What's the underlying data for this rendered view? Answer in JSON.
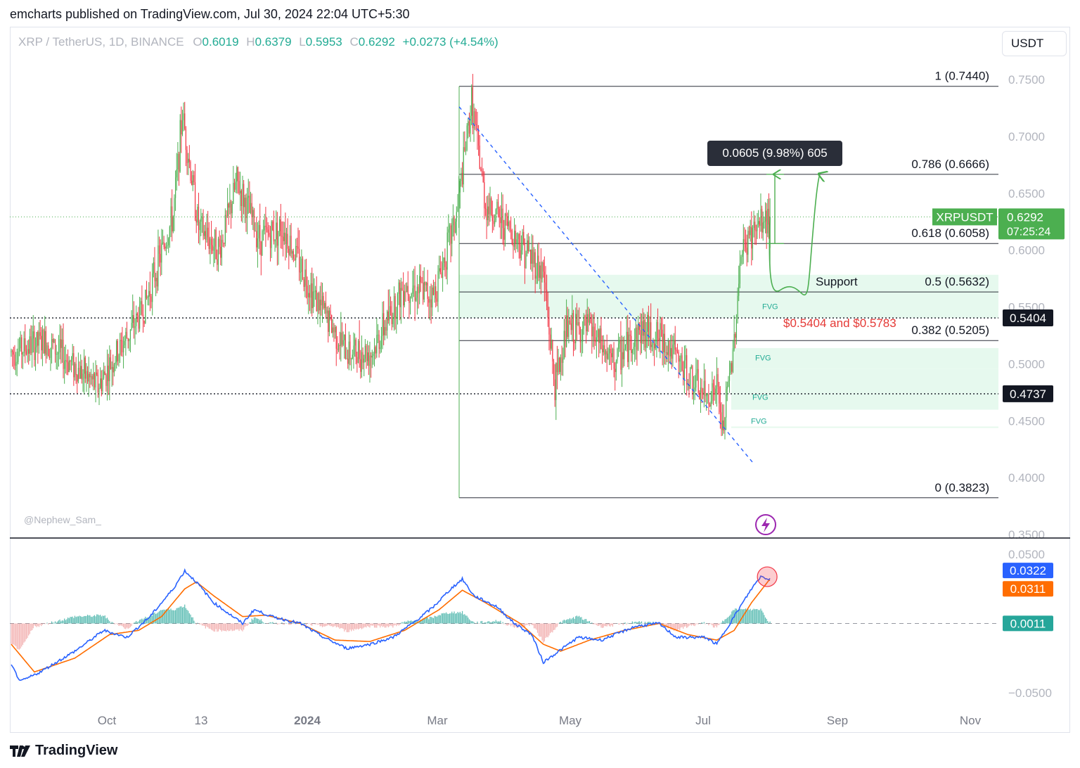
{
  "header": {
    "published": "emcharts published on TradingView.com, Jul 30, 2024 22:04 UTC+5:30"
  },
  "currency_button": "USDT",
  "ohlc": {
    "symbol": "XRP / TetherUS, 1D, BINANCE",
    "o_label": "O",
    "o": "0.6019",
    "h_label": "H",
    "h": "0.6379",
    "l_label": "L",
    "l": "0.5953",
    "c_label": "C",
    "c": "0.6292",
    "change": "+0.0273 (+4.54%)"
  },
  "watermark": "@Nephew_Sam_",
  "ruler_tooltip": "0.0605 (9.98%) 605",
  "support_label": "Support",
  "support_range": "$0.5404 and $0.5783",
  "fvg_label": "FVG",
  "footer": {
    "brand": "TradingView"
  },
  "colors": {
    "up": "#4caf50",
    "down": "#f23645",
    "macd": "#2962ff",
    "signal": "#ff6d00",
    "hist": "#26a69a",
    "fvg": "#e6f9ee",
    "label_red": "#e53935"
  },
  "chart_data": [
    {
      "type": "candlestick",
      "title": "XRP / TetherUS, 1D, BINANCE",
      "ylim": [
        0.34,
        0.76
      ],
      "y_ticks": [
        0.75,
        0.7,
        0.65,
        0.6,
        0.55,
        0.5,
        0.45,
        0.4,
        0.35
      ],
      "y_tick_labels": [
        "0.7500",
        "0.7000",
        "0.6500",
        "0.6000",
        "0.5500",
        "0.5000",
        "0.4500",
        "0.4000",
        "0.3500"
      ],
      "x_ticks": [
        "Oct",
        "13",
        "2024",
        "Mar",
        "May",
        "Jul",
        "Sep",
        "Nov"
      ],
      "last_price": {
        "symbol": "XRPUSDT",
        "value": "0.6292",
        "countdown": "07:25:24"
      },
      "price_tags": [
        {
          "value": 0.5404,
          "label": "0.5404"
        },
        {
          "value": 0.4737,
          "label": "0.4737"
        }
      ],
      "fib_levels": [
        {
          "level": "1",
          "price": 0.744,
          "label": "1 (0.7440)"
        },
        {
          "level": "0.786",
          "price": 0.6666,
          "label": "0.786 (0.6666)"
        },
        {
          "level": "0.618",
          "price": 0.6058,
          "label": "0.618 (0.6058)"
        },
        {
          "level": "0.5",
          "price": 0.5632,
          "label": "0.5 (0.5632)"
        },
        {
          "level": "0.382",
          "price": 0.5205,
          "label": "0.382 (0.5205)"
        },
        {
          "level": "0",
          "price": 0.3823,
          "label": "0 (0.3823)"
        }
      ],
      "fvg_zones": [
        [
          0.5404,
          0.5783
        ],
        [
          0.4957,
          0.5139
        ],
        [
          0.4597,
          0.4957
        ],
        [
          0.4437,
          0.4449
        ]
      ],
      "anchors": [
        {
          "x": 0,
          "y": 0.51
        },
        {
          "x": 30,
          "y": 0.52
        },
        {
          "x": 75,
          "y": 0.48
        },
        {
          "x": 115,
          "y": 0.55
        },
        {
          "x": 140,
          "y": 0.63
        },
        {
          "x": 148,
          "y": 0.72
        },
        {
          "x": 162,
          "y": 0.62
        },
        {
          "x": 180,
          "y": 0.6
        },
        {
          "x": 195,
          "y": 0.66
        },
        {
          "x": 215,
          "y": 0.61
        },
        {
          "x": 235,
          "y": 0.62
        },
        {
          "x": 262,
          "y": 0.56
        },
        {
          "x": 290,
          "y": 0.51
        },
        {
          "x": 312,
          "y": 0.51
        },
        {
          "x": 340,
          "y": 0.57
        },
        {
          "x": 365,
          "y": 0.56
        },
        {
          "x": 385,
          "y": 0.63
        },
        {
          "x": 398,
          "y": 0.73
        },
        {
          "x": 410,
          "y": 0.64
        },
        {
          "x": 430,
          "y": 0.62
        },
        {
          "x": 460,
          "y": 0.58
        },
        {
          "x": 470,
          "y": 0.48
        },
        {
          "x": 480,
          "y": 0.53
        },
        {
          "x": 500,
          "y": 0.53
        },
        {
          "x": 520,
          "y": 0.5
        },
        {
          "x": 545,
          "y": 0.53
        },
        {
          "x": 565,
          "y": 0.52
        },
        {
          "x": 585,
          "y": 0.49
        },
        {
          "x": 600,
          "y": 0.47
        },
        {
          "x": 610,
          "y": 0.48
        },
        {
          "x": 615,
          "y": 0.44
        },
        {
          "x": 625,
          "y": 0.52
        },
        {
          "x": 630,
          "y": 0.59
        },
        {
          "x": 637,
          "y": 0.61
        },
        {
          "x": 645,
          "y": 0.62
        },
        {
          "x": 655,
          "y": 0.6292
        }
      ],
      "forecast": {
        "target": 0.6666
      }
    },
    {
      "type": "line",
      "name": "MACD",
      "ylim": [
        -0.07,
        0.055
      ],
      "y_ticks": [
        0.05,
        -0.05
      ],
      "y_tick_labels": [
        "0.0500",
        "−0.0500"
      ],
      "values": {
        "macd": "0.0322",
        "signal": "0.0311",
        "histogram": "0.0011"
      },
      "macd_anchors": [
        {
          "x": 0,
          "y": -0.03
        },
        {
          "x": 8,
          "y": -0.042
        },
        {
          "x": 25,
          "y": -0.035
        },
        {
          "x": 55,
          "y": -0.02
        },
        {
          "x": 80,
          "y": -0.005
        },
        {
          "x": 100,
          "y": -0.01
        },
        {
          "x": 120,
          "y": 0.005
        },
        {
          "x": 140,
          "y": 0.025
        },
        {
          "x": 150,
          "y": 0.038
        },
        {
          "x": 160,
          "y": 0.03
        },
        {
          "x": 175,
          "y": 0.015
        },
        {
          "x": 200,
          "y": 0.0
        },
        {
          "x": 210,
          "y": 0.01
        },
        {
          "x": 225,
          "y": 0.005
        },
        {
          "x": 250,
          "y": 0.0
        },
        {
          "x": 270,
          "y": -0.01
        },
        {
          "x": 290,
          "y": -0.018
        },
        {
          "x": 310,
          "y": -0.015
        },
        {
          "x": 330,
          "y": -0.01
        },
        {
          "x": 350,
          "y": 0.002
        },
        {
          "x": 365,
          "y": 0.012
        },
        {
          "x": 380,
          "y": 0.025
        },
        {
          "x": 390,
          "y": 0.032
        },
        {
          "x": 400,
          "y": 0.02
        },
        {
          "x": 420,
          "y": 0.012
        },
        {
          "x": 435,
          "y": 0.0
        },
        {
          "x": 450,
          "y": -0.008
        },
        {
          "x": 460,
          "y": -0.028
        },
        {
          "x": 470,
          "y": -0.022
        },
        {
          "x": 490,
          "y": -0.01
        },
        {
          "x": 510,
          "y": -0.012
        },
        {
          "x": 540,
          "y": -0.002
        },
        {
          "x": 560,
          "y": 0.0
        },
        {
          "x": 575,
          "y": -0.01
        },
        {
          "x": 600,
          "y": -0.01
        },
        {
          "x": 610,
          "y": -0.015
        },
        {
          "x": 625,
          "y": 0.005
        },
        {
          "x": 640,
          "y": 0.025
        },
        {
          "x": 648,
          "y": 0.034
        },
        {
          "x": 655,
          "y": 0.0322
        }
      ],
      "signal_anchors": [
        {
          "x": 0,
          "y": -0.015
        },
        {
          "x": 20,
          "y": -0.035
        },
        {
          "x": 55,
          "y": -0.025
        },
        {
          "x": 85,
          "y": -0.008
        },
        {
          "x": 110,
          "y": -0.005
        },
        {
          "x": 130,
          "y": 0.005
        },
        {
          "x": 150,
          "y": 0.025
        },
        {
          "x": 160,
          "y": 0.03
        },
        {
          "x": 175,
          "y": 0.02
        },
        {
          "x": 200,
          "y": 0.005
        },
        {
          "x": 220,
          "y": 0.006
        },
        {
          "x": 250,
          "y": 0.0
        },
        {
          "x": 280,
          "y": -0.012
        },
        {
          "x": 310,
          "y": -0.013
        },
        {
          "x": 340,
          "y": -0.005
        },
        {
          "x": 370,
          "y": 0.01
        },
        {
          "x": 390,
          "y": 0.024
        },
        {
          "x": 410,
          "y": 0.015
        },
        {
          "x": 440,
          "y": 0.0
        },
        {
          "x": 460,
          "y": -0.015
        },
        {
          "x": 475,
          "y": -0.02
        },
        {
          "x": 500,
          "y": -0.012
        },
        {
          "x": 530,
          "y": -0.005
        },
        {
          "x": 560,
          "y": 0.0
        },
        {
          "x": 585,
          "y": -0.008
        },
        {
          "x": 610,
          "y": -0.012
        },
        {
          "x": 625,
          "y": -0.005
        },
        {
          "x": 640,
          "y": 0.015
        },
        {
          "x": 655,
          "y": 0.0311
        }
      ]
    }
  ]
}
